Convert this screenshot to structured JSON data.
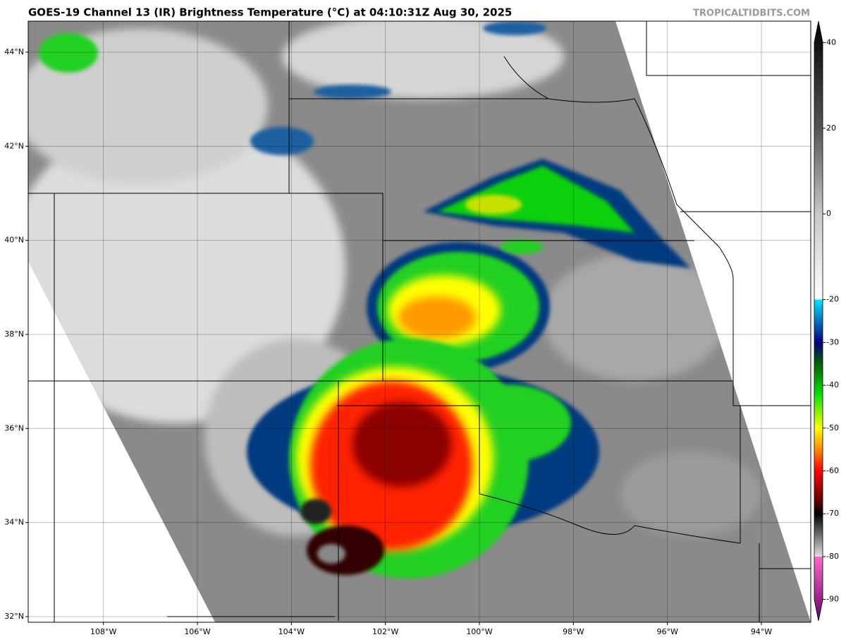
{
  "map": {
    "title": "GOES-19 Channel 13 (IR) Brightness Temperature (°C) at 04:10:31Z Aug 30, 2025",
    "credit": "TROPICALTIDBITS.COM",
    "lonlim": [
      -109.6,
      -92.95
    ],
    "latlim": [
      31.88,
      44.66
    ],
    "lonticks": [
      {
        "value": -108,
        "label": "108°W"
      },
      {
        "value": -106,
        "label": "106°W"
      },
      {
        "value": -104,
        "label": "104°W"
      },
      {
        "value": -102,
        "label": "102°W"
      },
      {
        "value": -100,
        "label": "100°W"
      },
      {
        "value": -98,
        "label": "98°W"
      },
      {
        "value": -96,
        "label": "96°W"
      },
      {
        "value": -94,
        "label": "94°W"
      }
    ],
    "latticks": [
      {
        "value": 44,
        "label": "44°N"
      },
      {
        "value": 42,
        "label": "42°N"
      },
      {
        "value": 40,
        "label": "40°N"
      },
      {
        "value": 38,
        "label": "38°N"
      },
      {
        "value": 36,
        "label": "36°N"
      },
      {
        "value": 34,
        "label": "34°N"
      },
      {
        "value": 32,
        "label": "32°N"
      }
    ],
    "colorbar": {
      "lim": [
        -95,
        45
      ],
      "ticks": [
        40,
        20,
        0,
        -20,
        -30,
        -40,
        -50,
        -60,
        -70,
        -80,
        -90
      ],
      "stops": [
        {
          "value": 45,
          "color": "#000000"
        },
        {
          "value": 20,
          "color": "#555555"
        },
        {
          "value": 0,
          "color": "#c8c8c8"
        },
        {
          "value": -20,
          "color": "#ffffff"
        },
        {
          "value": -20,
          "color": "#00e5ff"
        },
        {
          "value": -30,
          "color": "#000080"
        },
        {
          "value": -35,
          "color": "#006400"
        },
        {
          "value": -42,
          "color": "#00e000"
        },
        {
          "value": -50,
          "color": "#ffff00"
        },
        {
          "value": -55,
          "color": "#ff8c00"
        },
        {
          "value": -60,
          "color": "#ff0000"
        },
        {
          "value": -67,
          "color": "#600000"
        },
        {
          "value": -70,
          "color": "#000000"
        },
        {
          "value": -80,
          "color": "#e0e0e0"
        },
        {
          "value": -80,
          "color": "#ff66cc"
        },
        {
          "value": -95,
          "color": "#660066"
        }
      ]
    }
  }
}
